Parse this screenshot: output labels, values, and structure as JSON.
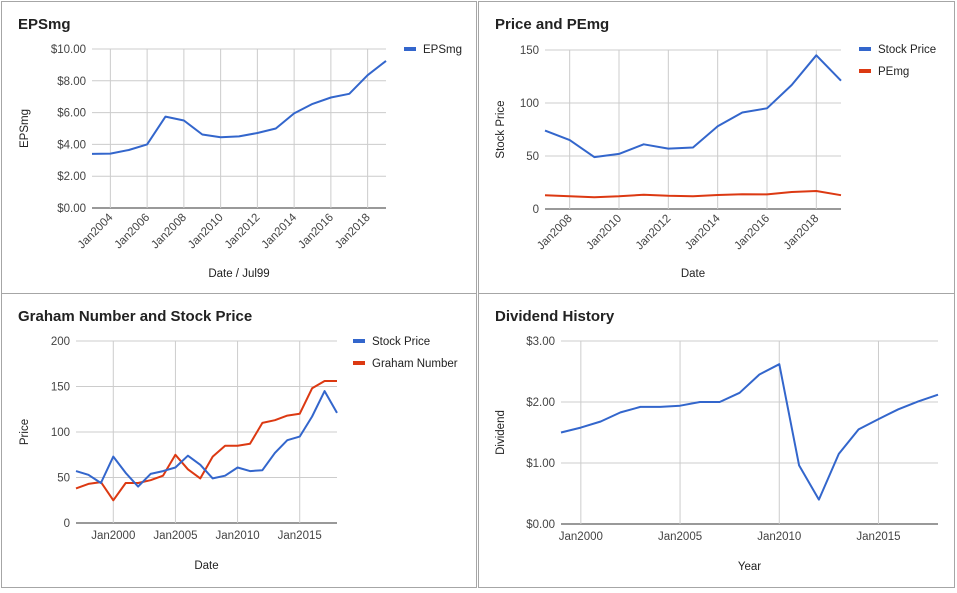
{
  "colors": {
    "blue": "#3366cc",
    "red": "#dc3912",
    "grid": "#cccccc",
    "baseline": "#333333"
  },
  "chart_data": [
    {
      "type": "line",
      "title": "EPSmg",
      "xlabel": "Date / Jul99",
      "ylabel": "EPSmg",
      "ylim": [
        0,
        10
      ],
      "y_ticks": [
        "$0.00",
        "$2.00",
        "$4.00",
        "$6.00",
        "$8.00",
        "$10.00"
      ],
      "x_ticks": [
        "Jan2004",
        "Jan2006",
        "Jan2008",
        "Jan2010",
        "Jan2012",
        "Jan2014",
        "Jan2016",
        "Jan2018"
      ],
      "x": [
        "2003",
        "2004",
        "2005",
        "2006",
        "2007",
        "2008",
        "2009",
        "2010",
        "2011",
        "2012",
        "2013",
        "2014",
        "2015",
        "2016",
        "2017",
        "2018",
        "2019"
      ],
      "legend_position": "right",
      "grid": true,
      "series": [
        {
          "name": "EPSmg",
          "color": "blue",
          "values": [
            3.4,
            3.42,
            3.65,
            4.0,
            5.75,
            5.5,
            4.62,
            4.45,
            4.5,
            4.72,
            5.0,
            5.95,
            6.55,
            6.95,
            7.18,
            8.35,
            9.25
          ]
        }
      ]
    },
    {
      "type": "line",
      "title": "Price and PEmg",
      "xlabel": "Date",
      "ylabel": "Stock Price",
      "ylim": [
        0,
        150
      ],
      "y_ticks": [
        "0",
        "50",
        "100",
        "150"
      ],
      "x_ticks": [
        "Jan2008",
        "Jan2010",
        "Jan2012",
        "Jan2014",
        "Jan2016",
        "Jan2018"
      ],
      "x": [
        "2007",
        "2008",
        "2009",
        "2010",
        "2011",
        "2012",
        "2013",
        "2014",
        "2015",
        "2016",
        "2017",
        "2018",
        "2019"
      ],
      "legend_position": "right",
      "grid": true,
      "series": [
        {
          "name": "Stock Price",
          "color": "blue",
          "values": [
            74,
            65,
            49,
            52,
            61,
            57,
            58,
            78,
            91,
            95,
            117,
            145,
            121
          ]
        },
        {
          "name": "PEmg",
          "color": "red",
          "values": [
            13,
            12,
            11,
            12,
            13.5,
            12.5,
            12,
            13.2,
            14,
            13.8,
            16,
            17,
            13
          ]
        }
      ]
    },
    {
      "type": "line",
      "title": "Graham Number and Stock Price",
      "xlabel": "Date",
      "ylabel": "Price",
      "ylim": [
        0,
        200
      ],
      "y_ticks": [
        "0",
        "50",
        "100",
        "150",
        "200"
      ],
      "x_ticks": [
        "Jan2000",
        "Jan2005",
        "Jan2010",
        "Jan2015"
      ],
      "x": [
        "1997",
        "1998",
        "1999",
        "2000",
        "2001",
        "2002",
        "2003",
        "2004",
        "2005",
        "2006",
        "2007",
        "2008",
        "2009",
        "2010",
        "2011",
        "2012",
        "2013",
        "2014",
        "2015",
        "2016",
        "2017",
        "2018"
      ],
      "legend_position": "right",
      "grid": true,
      "series": [
        {
          "name": "Stock Price",
          "color": "blue",
          "values": [
            57,
            53,
            44,
            73,
            55,
            40,
            54,
            57,
            61,
            74,
            64,
            49,
            52,
            61,
            57,
            58,
            77,
            91,
            95,
            117,
            145,
            121
          ]
        },
        {
          "name": "Graham Number",
          "color": "red",
          "values": [
            38,
            43,
            45,
            25,
            44,
            44,
            47,
            52,
            75,
            59,
            49,
            73,
            85,
            85,
            87,
            110,
            113,
            118,
            120,
            148,
            156,
            156
          ]
        }
      ]
    },
    {
      "type": "line",
      "title": "Dividend History",
      "xlabel": "Year",
      "ylabel": "Dividend",
      "ylim": [
        0,
        3
      ],
      "y_ticks": [
        "$0.00",
        "$1.00",
        "$2.00",
        "$3.00"
      ],
      "x_ticks": [
        "Jan2000",
        "Jan2005",
        "Jan2010",
        "Jan2015"
      ],
      "x": [
        "1999",
        "2000",
        "2001",
        "2002",
        "2003",
        "2004",
        "2005",
        "2006",
        "2007",
        "2008",
        "2009",
        "2010",
        "2011",
        "2012",
        "2013",
        "2014",
        "2015",
        "2016",
        "2017",
        "2018"
      ],
      "grid": true,
      "series": [
        {
          "name": "",
          "color": "blue",
          "values": [
            1.5,
            1.58,
            1.68,
            1.83,
            1.92,
            1.92,
            1.94,
            2.0,
            2.0,
            2.15,
            2.45,
            2.62,
            0.96,
            0.4,
            1.15,
            1.55,
            1.72,
            1.88,
            2.01,
            2.12
          ]
        }
      ]
    }
  ]
}
